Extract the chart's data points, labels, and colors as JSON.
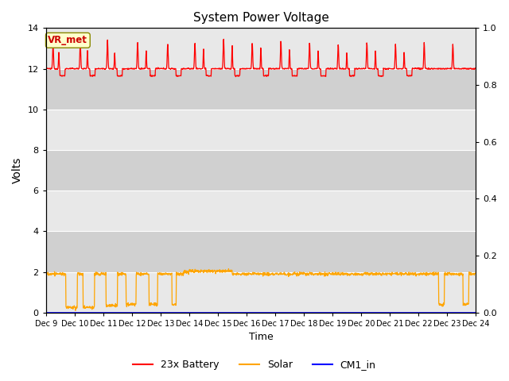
{
  "title": "System Power Voltage",
  "xlabel": "Time",
  "ylabel": "Volts",
  "x_tick_labels": [
    "Dec 9",
    "Dec 10",
    "Dec 11",
    "Dec 12",
    "Dec 13",
    "Dec 14",
    "Dec 15",
    "Dec 16",
    "Dec 17",
    "Dec 18",
    "Dec 19",
    "Dec 20",
    "Dec 21",
    "Dec 22",
    "Dec 23",
    "Dec 24"
  ],
  "ylim_left": [
    0,
    14
  ],
  "ylim_right": [
    0.0,
    1.0
  ],
  "yticks_left": [
    0,
    2,
    4,
    6,
    8,
    10,
    12,
    14
  ],
  "yticks_right": [
    0.0,
    0.2,
    0.4,
    0.6,
    0.8,
    1.0
  ],
  "legend_labels": [
    "23x Battery",
    "Solar",
    "CM1_in"
  ],
  "legend_colors": [
    "#ff0000",
    "#ffa500",
    "#0000ff"
  ],
  "vr_met_label": "VR_met",
  "vr_met_bg": "#ffffcc",
  "vr_met_border": "#888800",
  "vr_met_text_color": "#cc0000",
  "fig_bg_color": "#ffffff",
  "plot_bg_color": "#d8d8d8",
  "band_light": "#e8e8e8",
  "band_dark": "#d0d0d0",
  "grid_color": "#ffffff",
  "n_points": 1500,
  "battery_base": 12.0,
  "solar_base": 1.9
}
